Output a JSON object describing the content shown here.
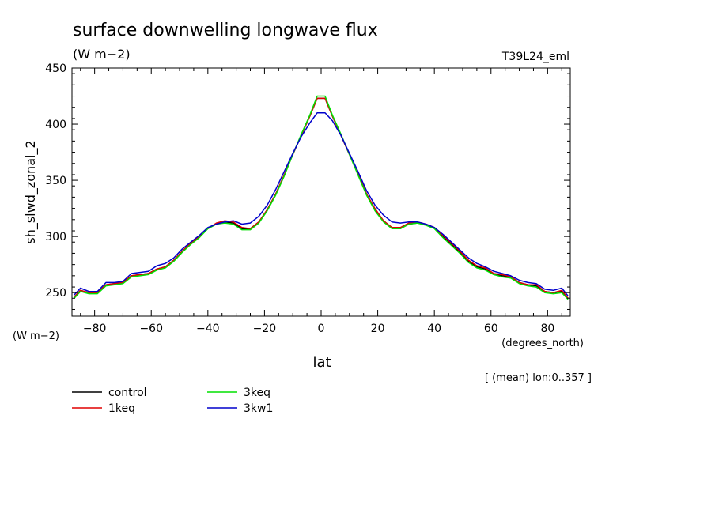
{
  "chart_data": {
    "type": "line",
    "title": "surface downwelling longwave flux",
    "subtitle": "(W m−2)",
    "tag": "T39L24_eml",
    "ylabel": "sh_slwd_zonal_2",
    "yunits": "(W m−2)",
    "xlabel": "lat",
    "xunits": "(degrees_north)",
    "note": "[ (mean) lon:0..357 ]",
    "xlim": [
      -88,
      88
    ],
    "ylim": [
      229,
      450
    ],
    "xticks": [
      -80,
      -60,
      -40,
      -20,
      0,
      20,
      40,
      60,
      80
    ],
    "xtick_labels": [
      "−80",
      "−60",
      "−40",
      "−20",
      "0",
      "20",
      "40",
      "60",
      "80"
    ],
    "yticks": [
      250,
      300,
      350,
      400,
      450
    ],
    "ytick_labels": [
      "250",
      "300",
      "350",
      "400",
      "450"
    ],
    "x": [
      -87.2,
      -85,
      -82,
      -79,
      -76,
      -73,
      -70,
      -67,
      -64,
      -61,
      -58,
      -55,
      -52,
      -49,
      -46,
      -43,
      -40,
      -37,
      -34,
      -31,
      -28,
      -25,
      -22,
      -19,
      -16,
      -13,
      -10,
      -7,
      -4,
      -1.4,
      1.4,
      4,
      7,
      10,
      13,
      16,
      19,
      22,
      25,
      28,
      31,
      34,
      37,
      40,
      43,
      46,
      49,
      52,
      55,
      58,
      61,
      64,
      67,
      70,
      73,
      76,
      79,
      82,
      85,
      87.2
    ],
    "series": [
      {
        "name": "control",
        "color": "#000000",
        "values": [
          246,
          252,
          250,
          250,
          257,
          258,
          259,
          265,
          266,
          267,
          271,
          273,
          279,
          287,
          294,
          300,
          307,
          311,
          313,
          312,
          307,
          307,
          313,
          324,
          338,
          355,
          373,
          390,
          407,
          423,
          423,
          407,
          390,
          373,
          356,
          338,
          324,
          314,
          308,
          307,
          311,
          312,
          311,
          308,
          300,
          293,
          286,
          278,
          273,
          271,
          266,
          265,
          264,
          259,
          257,
          256,
          251,
          250,
          251,
          245
        ]
      },
      {
        "name": "1keq",
        "color": "#e00000",
        "values": [
          246,
          252,
          250,
          250,
          257,
          258,
          259,
          265,
          266,
          267,
          271,
          273,
          279,
          287,
          294,
          300,
          307,
          312,
          314,
          313,
          308,
          307,
          313,
          324,
          338,
          355,
          373,
          390,
          407,
          423,
          423,
          407,
          390,
          373,
          356,
          338,
          325,
          314,
          308,
          308,
          312,
          313,
          311,
          308,
          301,
          294,
          287,
          279,
          274,
          272,
          267,
          266,
          264,
          259,
          257,
          257,
          251,
          250,
          252,
          245
        ]
      },
      {
        "name": "3keq",
        "color": "#00e000",
        "values": [
          245,
          251,
          249,
          249,
          256,
          257,
          258,
          264,
          265,
          266,
          270,
          272,
          278,
          286,
          293,
          299,
          307,
          311,
          312,
          311,
          306,
          306,
          312,
          323,
          337,
          354,
          373,
          391,
          408,
          425,
          425,
          408,
          391,
          373,
          355,
          337,
          323,
          313,
          307,
          307,
          311,
          312,
          310,
          307,
          299,
          292,
          285,
          277,
          272,
          270,
          266,
          264,
          263,
          258,
          256,
          255,
          250,
          249,
          250,
          244
        ]
      },
      {
        "name": "3kw1",
        "color": "#0000cc",
        "values": [
          248,
          254,
          251,
          251,
          259,
          259,
          260,
          267,
          268,
          269,
          274,
          276,
          281,
          289,
          295,
          301,
          308,
          311,
          313,
          314,
          311,
          312,
          318,
          328,
          342,
          358,
          374,
          389,
          401,
          410,
          410,
          403,
          390,
          374,
          358,
          341,
          328,
          319,
          313,
          312,
          313,
          313,
          311,
          308,
          302,
          295,
          288,
          281,
          276,
          273,
          269,
          267,
          265,
          261,
          259,
          258,
          253,
          252,
          254,
          247
        ]
      }
    ],
    "legend": [
      {
        "name": "control",
        "color": "#000000"
      },
      {
        "name": "1keq",
        "color": "#e00000"
      },
      {
        "name": "3keq",
        "color": "#00e000"
      },
      {
        "name": "3kw1",
        "color": "#0000cc"
      }
    ],
    "legend_position": "bottom-left",
    "grid": false
  }
}
